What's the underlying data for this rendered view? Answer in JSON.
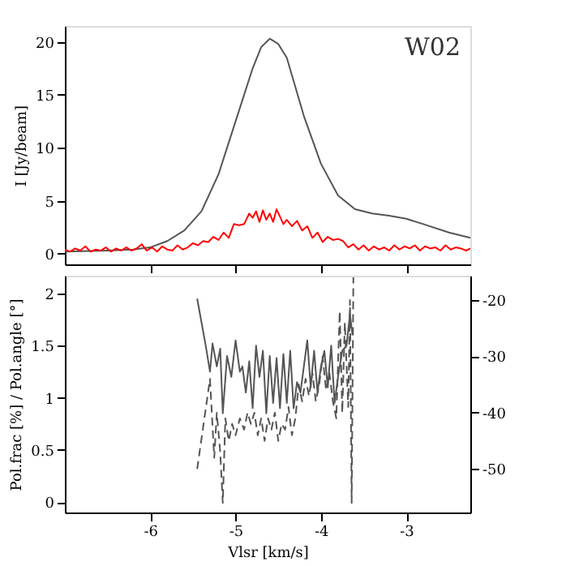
{
  "chart_data": [
    {
      "type": "line",
      "ylabel": "I [Jy/beam]",
      "annotations": [
        "W02"
      ],
      "xlim": [
        -7,
        -2.25
      ],
      "ylim": [
        -1,
        21.5
      ],
      "xticks": [
        -6,
        -5,
        -4,
        -3
      ],
      "yticks": [
        0,
        5,
        10,
        15,
        20
      ],
      "tick_labels": "y",
      "grid": false,
      "marker": "none",
      "series": [
        {
          "color": "#555555",
          "line_style": "solid",
          "x": [
            -7,
            -6.5,
            -6.2,
            -6,
            -5.8,
            -5.6,
            -5.4,
            -5.2,
            -5.0,
            -4.8,
            -4.7,
            -4.6,
            -4.5,
            -4.4,
            -4.2,
            -4.0,
            -3.8,
            -3.6,
            -3.4,
            -3.2,
            -3.0,
            -2.8,
            -2.5,
            -2.25
          ],
          "values": [
            0.2,
            0.3,
            0.4,
            0.6,
            1.2,
            2.2,
            4.0,
            7.5,
            12.5,
            17.5,
            19.5,
            20.3,
            19.8,
            18.5,
            13.0,
            8.5,
            5.5,
            4.2,
            3.8,
            3.6,
            3.3,
            2.8,
            2.0,
            1.5
          ]
        },
        {
          "color": "#ff0000",
          "line_style": "solid",
          "x": [
            -7,
            -6.94,
            -6.88,
            -6.82,
            -6.76,
            -6.7,
            -6.64,
            -6.58,
            -6.52,
            -6.46,
            -6.4,
            -6.34,
            -6.28,
            -6.22,
            -6.16,
            -6.1,
            -6.04,
            -5.98,
            -5.92,
            -5.86,
            -5.8,
            -5.74,
            -5.68,
            -5.62,
            -5.56,
            -5.5,
            -5.44,
            -5.38,
            -5.32,
            -5.26,
            -5.2,
            -5.14,
            -5.08,
            -5.02,
            -4.96,
            -4.9,
            -4.84,
            -4.8,
            -4.76,
            -4.72,
            -4.68,
            -4.64,
            -4.6,
            -4.56,
            -4.52,
            -4.48,
            -4.44,
            -4.4,
            -4.34,
            -4.28,
            -4.22,
            -4.16,
            -4.1,
            -4.04,
            -3.98,
            -3.92,
            -3.86,
            -3.8,
            -3.74,
            -3.68,
            -3.62,
            -3.56,
            -3.5,
            -3.44,
            -3.38,
            -3.32,
            -3.26,
            -3.2,
            -3.14,
            -3.08,
            -3.02,
            -2.96,
            -2.9,
            -2.84,
            -2.78,
            -2.72,
            -2.66,
            -2.6,
            -2.54,
            -2.48,
            -2.42,
            -2.36,
            -2.3,
            -2.25
          ],
          "values": [
            0.4,
            0.2,
            0.5,
            0.3,
            0.7,
            0.2,
            0.4,
            0.3,
            0.6,
            0.2,
            0.5,
            0.3,
            0.6,
            0.3,
            0.5,
            0.9,
            0.3,
            0.6,
            0.2,
            0.7,
            0.4,
            0.3,
            0.8,
            0.4,
            0.6,
            1.0,
            0.8,
            1.2,
            1.1,
            1.6,
            1.3,
            2.0,
            1.5,
            2.8,
            2.7,
            2.8,
            3.8,
            3.4,
            4.0,
            3.0,
            4.1,
            3.2,
            3.8,
            3.0,
            4.2,
            3.5,
            2.8,
            3.2,
            2.6,
            3.1,
            2.2,
            2.6,
            1.5,
            2.0,
            1.1,
            1.6,
            1.3,
            1.4,
            1.2,
            0.6,
            0.9,
            0.4,
            0.8,
            0.3,
            0.7,
            0.4,
            0.6,
            0.3,
            0.8,
            0.4,
            0.7,
            0.5,
            0.8,
            0.3,
            0.7,
            0.5,
            0.6,
            0.3,
            0.8,
            0.4,
            0.6,
            0.5,
            0.3,
            0.5
          ]
        }
      ]
    },
    {
      "type": "line",
      "xlabel": "Vlsr [km/s]",
      "ylabel": "Pol.frac [%] / Pol.angle [°]",
      "xlim": [
        -7,
        -2.25
      ],
      "ylim": [
        -0.1,
        2.17
      ],
      "y2lim": [
        -57.7,
        -15.7
      ],
      "xticks": [
        -6,
        -5,
        -4,
        -3
      ],
      "yticks": [
        0,
        0.5,
        1,
        1.5,
        2
      ],
      "y2ticks": [
        -50,
        -40,
        -30,
        -20
      ],
      "grid": false,
      "marker": "none",
      "series": [
        {
          "color": "#555555",
          "line_style": "solid",
          "x": [
            -5.45,
            -5.35,
            -5.3,
            -5.27,
            -5.22,
            -5.18,
            -5.15,
            -5.1,
            -5.05,
            -5.0,
            -4.95,
            -4.92,
            -4.88,
            -4.84,
            -4.8,
            -4.76,
            -4.72,
            -4.68,
            -4.64,
            -4.6,
            -4.56,
            -4.52,
            -4.48,
            -4.44,
            -4.4,
            -4.36,
            -4.32,
            -4.28,
            -4.24,
            -4.2,
            -4.16,
            -4.12,
            -4.08,
            -4.04,
            -4.0,
            -3.96,
            -3.92,
            -3.88,
            -3.84,
            -3.8,
            -3.75,
            -3.7,
            -3.66,
            -3.63
          ],
          "values": [
            1.95,
            1.5,
            1.25,
            1.52,
            1.3,
            1.47,
            0.85,
            1.4,
            1.2,
            1.55,
            1.25,
            1.3,
            1.05,
            1.35,
            0.9,
            1.5,
            1.2,
            1.45,
            0.85,
            1.4,
            0.95,
            1.38,
            0.9,
            1.42,
            0.95,
            1.45,
            0.9,
            1.15,
            1.05,
            1.3,
            1.55,
            1.1,
            1.45,
            1.05,
            1.3,
            1.45,
            1.1,
            1.5,
            0.95,
            1.2,
            1.45,
            1.5,
            1.8,
            1.6
          ]
        },
        {
          "color": "#555555",
          "line_style": "dashed",
          "axis": "y2",
          "x": [
            -5.45,
            -5.3,
            -5.25,
            -5.22,
            -5.18,
            -5.15,
            -5.12,
            -5.08,
            -5.04,
            -5.0,
            -4.95,
            -4.9,
            -4.86,
            -4.82,
            -4.78,
            -4.74,
            -4.7,
            -4.66,
            -4.62,
            -4.58,
            -4.54,
            -4.5,
            -4.46,
            -4.42,
            -4.38,
            -4.34,
            -4.3,
            -4.26,
            -4.22,
            -4.18,
            -4.14,
            -4.1,
            -4.06,
            -4.02,
            -3.98,
            -3.94,
            -3.9,
            -3.86,
            -3.82,
            -3.78,
            -3.75,
            -3.72,
            -3.68,
            -3.66,
            -3.64,
            -3.62
          ],
          "values": [
            -50,
            -34,
            -48,
            -40,
            -47,
            -56,
            -41,
            -45,
            -42,
            -44,
            -41,
            -43,
            -40,
            -42,
            -40,
            -44,
            -41,
            -45,
            -41,
            -43,
            -40,
            -45,
            -42,
            -43,
            -39,
            -44,
            -41,
            -35,
            -38,
            -34,
            -37,
            -33,
            -38,
            -35,
            -30,
            -36,
            -33,
            -38,
            -41,
            -22,
            -40,
            -24,
            -39,
            -20,
            -56,
            -16
          ]
        }
      ]
    }
  ]
}
